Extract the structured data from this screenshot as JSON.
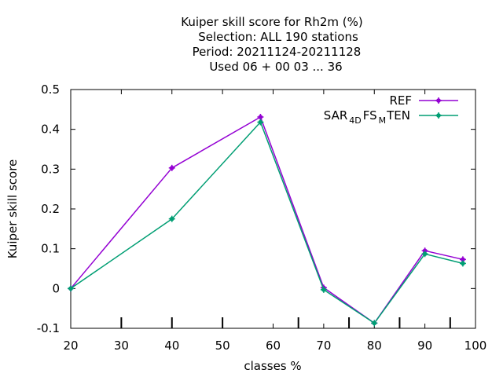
{
  "chart_data": {
    "type": "line",
    "title_lines": [
      "Kuiper skill score  for Rh2m (%)",
      "Selection: ALL    190 stations",
      "Period: 20211124-20211128",
      "Used  06 + 00 03 ... 36"
    ],
    "xlabel": "classes %",
    "ylabel": "Kuiper skill score",
    "xlim": [
      20,
      100
    ],
    "ylim": [
      -0.1,
      0.5
    ],
    "xticks": [
      20,
      30,
      40,
      50,
      60,
      70,
      80,
      90,
      100
    ],
    "xtick_labels": [
      "20",
      "30",
      "40",
      "50",
      "60",
      "70",
      "80",
      "90",
      "100"
    ],
    "yticks": [
      -0.1,
      0,
      0.1,
      0.2,
      0.3,
      0.4,
      0.5
    ],
    "ytick_labels": [
      "-0.1",
      "0",
      "0.1",
      "0.2",
      "0.3",
      "0.4",
      "0.5"
    ],
    "bottom_class_markers": [
      30,
      40,
      50,
      65,
      75,
      85,
      95
    ],
    "grid": false,
    "legend_position": "top-right",
    "series": [
      {
        "name": "REF",
        "color": "#9400d3",
        "marker": "plus-dot",
        "x": [
          20,
          40,
          57.5,
          70,
          80,
          90,
          97.5
        ],
        "y": [
          0.0,
          0.303,
          0.431,
          0.002,
          -0.087,
          0.095,
          0.073
        ]
      },
      {
        "name_parts": [
          "SAR",
          "4D",
          "FS",
          "M",
          "TEN"
        ],
        "color": "#009e73",
        "marker": "plus-dot",
        "x": [
          20,
          40,
          57.5,
          70,
          80,
          90,
          97.5
        ],
        "y": [
          0.0,
          0.175,
          0.418,
          -0.003,
          -0.087,
          0.087,
          0.063
        ]
      }
    ]
  }
}
